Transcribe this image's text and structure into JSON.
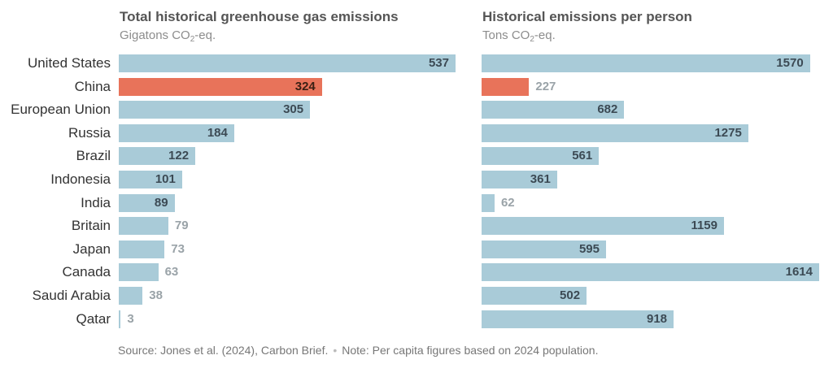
{
  "chart_data": [
    {
      "type": "bar",
      "orientation": "horizontal",
      "title": "Total historical greenhouse gas emissions",
      "subtitle": {
        "prefix": "Gigatons CO",
        "subscript": "2",
        "suffix": "-eq."
      },
      "categories": [
        "United States",
        "China",
        "European Union",
        "Russia",
        "Brazil",
        "Indonesia",
        "India",
        "Britain",
        "Japan",
        "Canada",
        "Saudi Arabia",
        "Qatar"
      ],
      "values": [
        537,
        324,
        305,
        184,
        122,
        101,
        89,
        79,
        73,
        63,
        38,
        3
      ],
      "value_labels": [
        "537",
        "324",
        "305",
        "184",
        "122",
        "101",
        "89",
        "79",
        "73",
        "63",
        "38",
        "3"
      ],
      "highlight": "China",
      "xlim": [
        0,
        537
      ],
      "grid": false,
      "legend": "none"
    },
    {
      "type": "bar",
      "orientation": "horizontal",
      "title": "Historical emissions per person",
      "subtitle": {
        "prefix": "Tons CO",
        "subscript": "2",
        "suffix": "-eq."
      },
      "categories": [
        "United States",
        "China",
        "European Union",
        "Russia",
        "Brazil",
        "Indonesia",
        "India",
        "Britain",
        "Japan",
        "Canada",
        "Saudi Arabia",
        "Qatar"
      ],
      "values": [
        1570,
        227,
        682,
        1275,
        561,
        361,
        62,
        1159,
        595,
        1614,
        502,
        918
      ],
      "value_labels": [
        "1570",
        "227",
        "682",
        "1275",
        "561",
        "361",
        "62",
        "1159",
        "595",
        "1614",
        "502",
        "918"
      ],
      "highlight": "China",
      "xlim": [
        0,
        1614
      ],
      "grid": false,
      "legend": "none"
    }
  ],
  "colors": {
    "bar": "#a9cbd8",
    "highlight": "#e8735a"
  },
  "footer": {
    "source": "Source: Jones et al. (2024), Carbon Brief.",
    "separator": "•",
    "note": "Note: Per capita figures based on 2024 population."
  }
}
